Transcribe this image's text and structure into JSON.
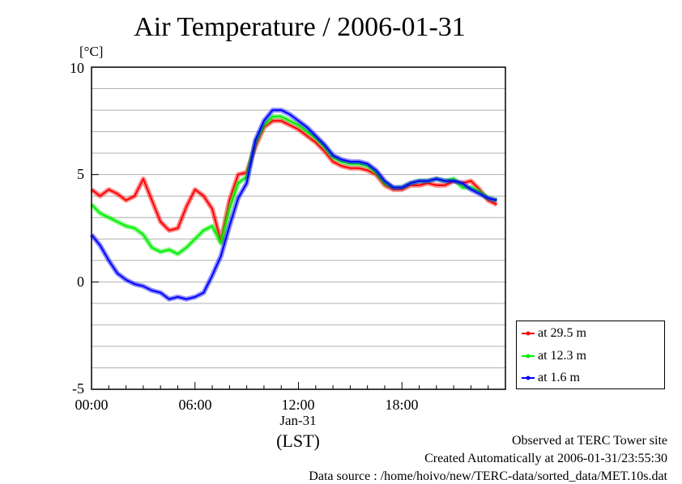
{
  "chart_data": {
    "type": "line",
    "title": "Air Temperature / 2006-01-31",
    "ylabel": "[°C]",
    "xlabel": "(LST)",
    "x_tick_labels": [
      "00:00",
      "06:00",
      "12:00",
      "18:00"
    ],
    "x_sub_label": "Jan-31",
    "x_ticks_hours": [
      0,
      6,
      12,
      18
    ],
    "xlim": [
      0,
      24
    ],
    "ylim": [
      -5,
      10
    ],
    "y_ticks": [
      -5,
      0,
      5,
      10
    ],
    "y_tick_labels": [
      "-5",
      "0",
      "5",
      "10"
    ],
    "grid": true,
    "legend_position": "bottom-right, outside plot",
    "x": [
      0,
      0.5,
      1,
      1.5,
      2,
      2.5,
      3,
      3.5,
      4,
      4.5,
      5,
      5.5,
      6,
      6.5,
      7,
      7.5,
      8,
      8.5,
      9,
      9.5,
      10,
      10.5,
      11,
      11.5,
      12,
      12.5,
      13,
      13.5,
      14,
      14.5,
      15,
      15.5,
      16,
      16.5,
      17,
      17.5,
      18,
      18.5,
      19,
      19.5,
      20,
      20.5,
      21,
      21.5,
      22,
      22.5,
      23,
      23.5
    ],
    "series": [
      {
        "name": "at 29.5 m",
        "color": "#ff0000",
        "values": [
          4.3,
          4.0,
          4.3,
          4.1,
          3.8,
          4.0,
          4.8,
          3.8,
          2.8,
          2.4,
          2.5,
          3.5,
          4.3,
          4.0,
          3.4,
          1.9,
          3.8,
          5.0,
          5.1,
          6.3,
          7.2,
          7.5,
          7.5,
          7.3,
          7.1,
          6.8,
          6.5,
          6.1,
          5.6,
          5.4,
          5.3,
          5.3,
          5.2,
          5.0,
          4.5,
          4.3,
          4.3,
          4.5,
          4.5,
          4.6,
          4.5,
          4.5,
          4.7,
          4.6,
          4.7,
          4.3,
          3.8,
          3.6
        ]
      },
      {
        "name": "at 12.3 m",
        "color": "#00ee00",
        "values": [
          3.6,
          3.2,
          3.0,
          2.8,
          2.6,
          2.5,
          2.2,
          1.6,
          1.4,
          1.5,
          1.3,
          1.6,
          2.0,
          2.4,
          2.6,
          1.8,
          3.4,
          4.6,
          4.9,
          6.5,
          7.3,
          7.7,
          7.7,
          7.5,
          7.3,
          7.0,
          6.7,
          6.3,
          5.8,
          5.6,
          5.5,
          5.5,
          5.4,
          5.1,
          4.6,
          4.4,
          4.4,
          4.6,
          4.7,
          4.7,
          4.8,
          4.7,
          4.8,
          4.4,
          4.4,
          4.2,
          3.9,
          3.8
        ]
      },
      {
        "name": "at 1.6 m",
        "color": "#0000ff",
        "values": [
          2.2,
          1.7,
          1.0,
          0.4,
          0.1,
          -0.1,
          -0.2,
          -0.4,
          -0.5,
          -0.8,
          -0.7,
          -0.8,
          -0.7,
          -0.5,
          0.3,
          1.2,
          2.6,
          3.9,
          4.6,
          6.6,
          7.5,
          8.0,
          8.0,
          7.8,
          7.5,
          7.2,
          6.8,
          6.4,
          5.9,
          5.7,
          5.6,
          5.6,
          5.5,
          5.2,
          4.7,
          4.4,
          4.4,
          4.6,
          4.7,
          4.7,
          4.8,
          4.7,
          4.7,
          4.6,
          4.3,
          4.1,
          3.9,
          3.8
        ]
      }
    ]
  },
  "footer": {
    "line1": "Observed at TERC Tower site",
    "line2": "Created Automatically at 2006-01-31/23:55:30",
    "line3": "Data source : /home/hoivo/new/TERC-data/sorted_data/MET.10s.dat"
  }
}
